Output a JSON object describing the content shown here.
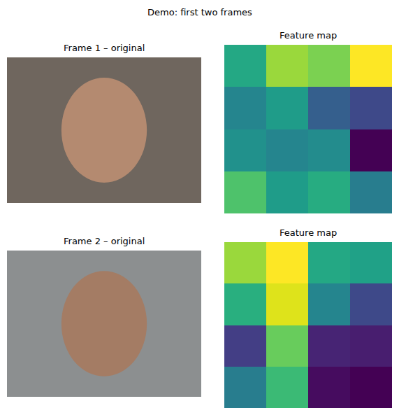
{
  "title": "Demo: first two frames",
  "chart_data": [
    {
      "type": "image",
      "title": "Frame 1 – original"
    },
    {
      "type": "heatmap",
      "title": "Feature map",
      "color": "Viridis",
      "tick_labels": false,
      "zlim": [
        0,
        1
      ],
      "z": [
        [
          0.6,
          0.85,
          0.8,
          1.0
        ],
        [
          0.45,
          0.55,
          0.3,
          0.22
        ],
        [
          0.5,
          0.45,
          0.48,
          0.0
        ],
        [
          0.72,
          0.55,
          0.62,
          0.42
        ]
      ]
    },
    {
      "type": "image",
      "title": "Frame 2 – original"
    },
    {
      "type": "heatmap",
      "title": "Feature map",
      "color": "Viridis",
      "tick_labels": false,
      "zlim": [
        0,
        1
      ],
      "z": [
        [
          0.85,
          1.0,
          0.6,
          0.57
        ],
        [
          0.63,
          0.95,
          0.45,
          0.22
        ],
        [
          0.18,
          0.77,
          0.1,
          0.08
        ],
        [
          0.42,
          0.68,
          0.03,
          0.0
        ]
      ]
    }
  ]
}
